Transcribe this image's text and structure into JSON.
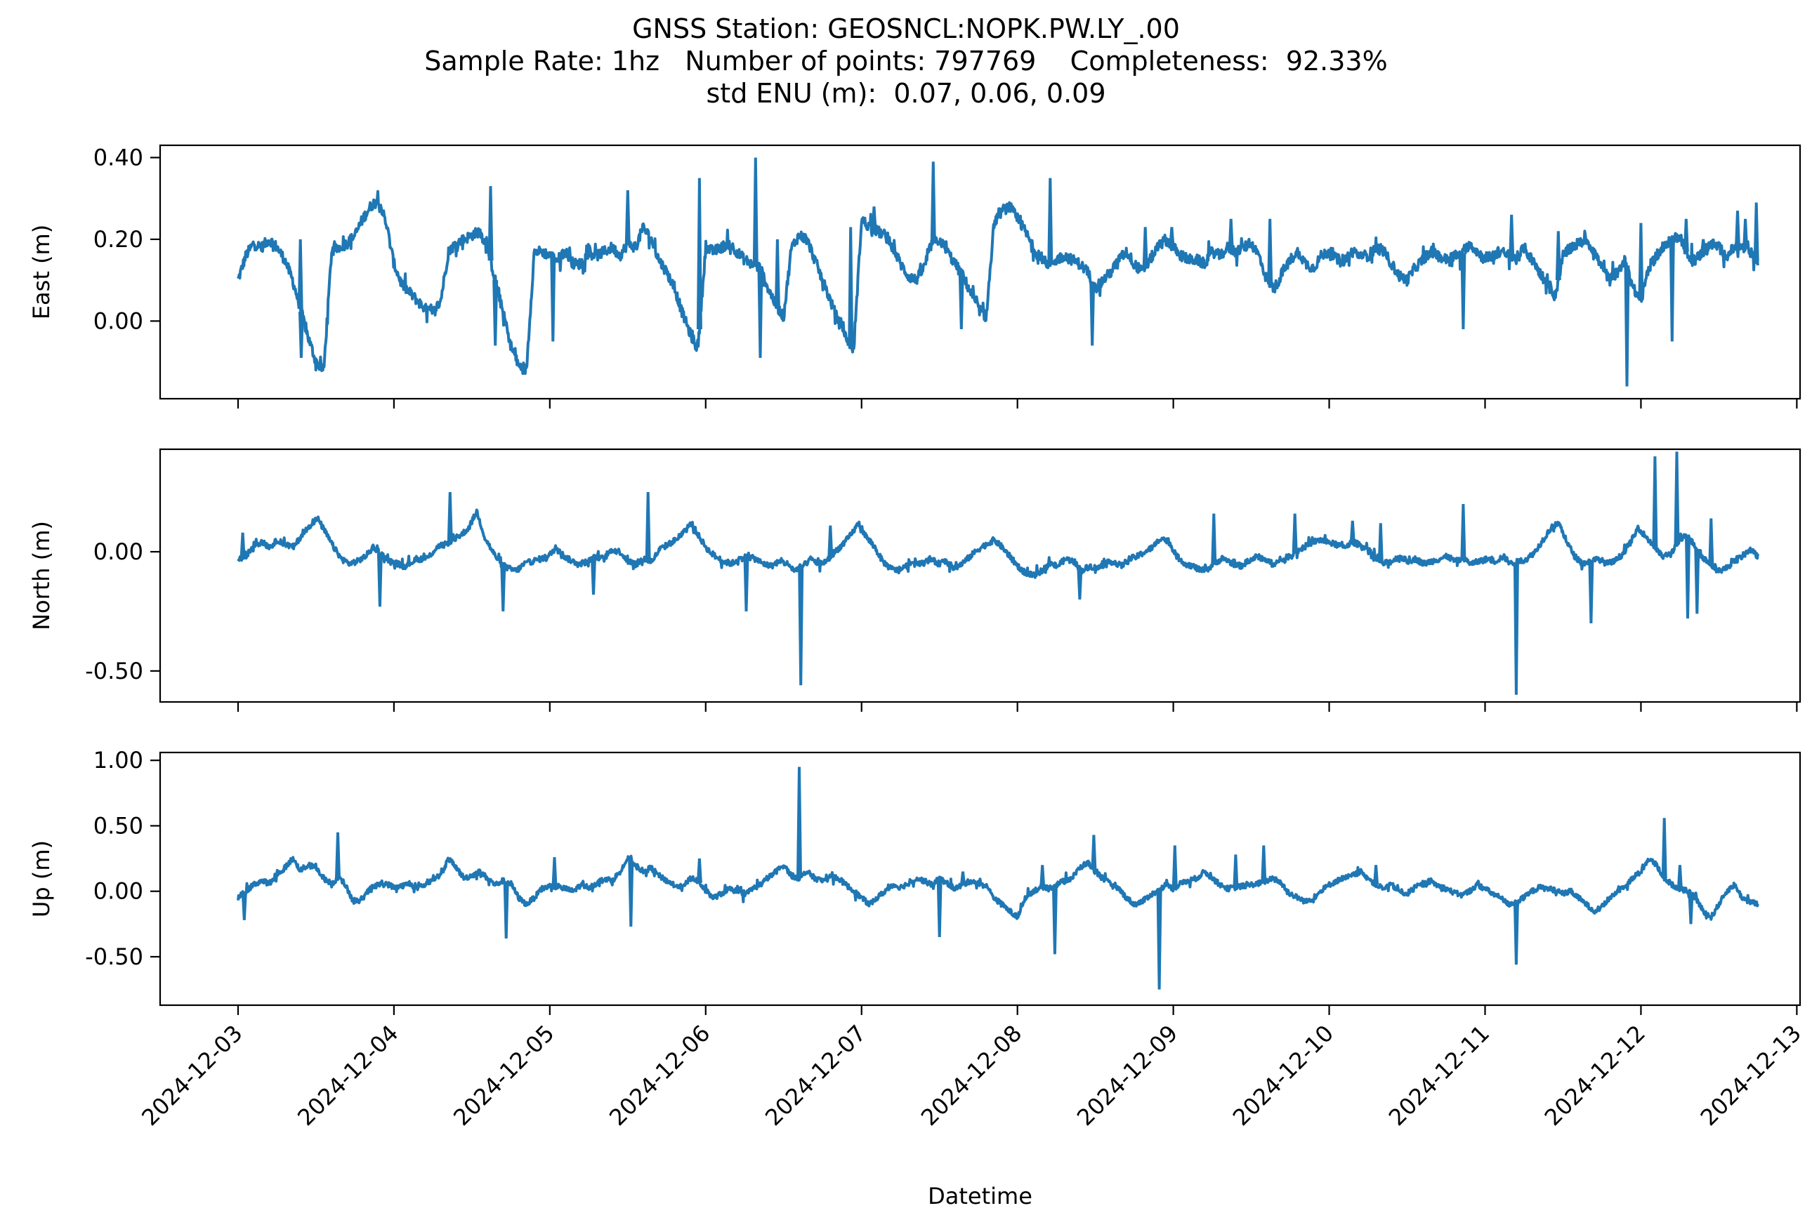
{
  "title": {
    "line1": "GNSS Station: GEOSNCL:NOPK.PW.LY_.00",
    "line2": "Sample Rate: 1hz   Number of points: 797769    Completeness:  92.33%",
    "line3": "std ENU (m):  0.07, 0.06, 0.09"
  },
  "colors": {
    "series": "#1f77b4",
    "axes": "#000000",
    "background": "#ffffff"
  },
  "chart_data": {
    "type": "line",
    "xlabel": "Datetime",
    "x_ticks": [
      "2024-12-03",
      "2024-12-04",
      "2024-12-05",
      "2024-12-06",
      "2024-12-07",
      "2024-12-08",
      "2024-12-09",
      "2024-12-10",
      "2024-12-11",
      "2024-12-12",
      "2024-12-13"
    ],
    "xlim": [
      "2024-12-02T12:00",
      "2024-12-13T00:30"
    ],
    "x_start": "2024-12-03T00:00",
    "x_end": "2024-12-12T18:00",
    "grid": false,
    "legend": "none",
    "panels": [
      {
        "name": "East",
        "ylabel": "East (m)",
        "ylim": [
          -0.19,
          0.43
        ],
        "yticks": [
          0.0,
          0.2,
          0.4
        ],
        "ytick_labels": [
          "0.00",
          "0.20",
          "0.40"
        ],
        "baseline": [
          0.1,
          0.16,
          0.19,
          0.18,
          0.2,
          0.18,
          0.15,
          0.1,
          0.03,
          -0.04,
          -0.1,
          -0.12,
          0.17,
          0.18,
          0.19,
          0.21,
          0.25,
          0.28,
          0.3,
          0.24,
          0.14,
          0.09,
          0.07,
          0.05,
          0.03,
          0.02,
          0.05,
          0.17,
          0.19,
          0.2,
          0.21,
          0.22,
          0.18,
          0.1,
          0.02,
          -0.06,
          -0.11,
          -0.12,
          0.17,
          0.17,
          0.16,
          0.15,
          0.17,
          0.14,
          0.14,
          0.17,
          0.16,
          0.17,
          0.18,
          0.16,
          0.19,
          0.18,
          0.23,
          0.2,
          0.15,
          0.12,
          0.08,
          0.02,
          -0.03,
          -0.07,
          0.18,
          0.17,
          0.18,
          0.19,
          0.17,
          0.15,
          0.14,
          0.13,
          0.08,
          0.04,
          0.01,
          0.18,
          0.21,
          0.2,
          0.15,
          0.1,
          0.05,
          0.0,
          -0.04,
          -0.07,
          0.25,
          0.23,
          0.22,
          0.21,
          0.18,
          0.14,
          0.11,
          0.1,
          0.13,
          0.19,
          0.2,
          0.17,
          0.14,
          0.11,
          0.07,
          0.03,
          0.01,
          0.24,
          0.27,
          0.28,
          0.25,
          0.22,
          0.18,
          0.15,
          0.14,
          0.15,
          0.16,
          0.15,
          0.14,
          0.12,
          0.08,
          0.1,
          0.12,
          0.15,
          0.17,
          0.14,
          0.12,
          0.15,
          0.18,
          0.2,
          0.18,
          0.16,
          0.15,
          0.15,
          0.14,
          0.17,
          0.16,
          0.18,
          0.17,
          0.18,
          0.19,
          0.16,
          0.1,
          0.08,
          0.12,
          0.15,
          0.17,
          0.14,
          0.13,
          0.16,
          0.17,
          0.15,
          0.15,
          0.17,
          0.16,
          0.16,
          0.18,
          0.17,
          0.14,
          0.11,
          0.1,
          0.13,
          0.15,
          0.17,
          0.16,
          0.15,
          0.16,
          0.16,
          0.19,
          0.17,
          0.15,
          0.16,
          0.17,
          0.16,
          0.15,
          0.18,
          0.15,
          0.12,
          0.09,
          0.06,
          0.16,
          0.18,
          0.19,
          0.2,
          0.17,
          0.13,
          0.1,
          0.12,
          0.15,
          0.08,
          0.05,
          0.13,
          0.16,
          0.18,
          0.2,
          0.21,
          0.16,
          0.15,
          0.17,
          0.19,
          0.18,
          0.16,
          0.18,
          0.18,
          0.17,
          0.14
        ],
        "spikes": [
          [
            0.4,
            0.2
          ],
          [
            0.405,
            -0.09
          ],
          [
            1.62,
            0.33
          ],
          [
            1.65,
            -0.06
          ],
          [
            2.02,
            -0.05
          ],
          [
            2.5,
            0.32
          ],
          [
            2.96,
            0.35
          ],
          [
            3.32,
            0.4
          ],
          [
            3.35,
            -0.09
          ],
          [
            3.46,
            0.2
          ],
          [
            3.93,
            0.23
          ],
          [
            4.08,
            0.28
          ],
          [
            4.46,
            0.39
          ],
          [
            4.64,
            -0.02
          ],
          [
            5.21,
            0.35
          ],
          [
            5.48,
            -0.06
          ],
          [
            5.82,
            0.23
          ],
          [
            5.99,
            0.23
          ],
          [
            6.37,
            0.25
          ],
          [
            6.62,
            0.25
          ],
          [
            7.31,
            0.17
          ],
          [
            7.86,
            -0.02
          ],
          [
            8.01,
            0.17
          ],
          [
            8.17,
            0.26
          ],
          [
            8.47,
            0.22
          ],
          [
            8.91,
            -0.16
          ],
          [
            9.0,
            0.24
          ],
          [
            9.2,
            -0.05
          ],
          [
            9.29,
            0.25
          ],
          [
            9.4,
            0.2
          ],
          [
            9.62,
            0.27
          ],
          [
            9.67,
            0.25
          ],
          [
            9.74,
            0.29
          ]
        ],
        "noise": 0.013
      },
      {
        "name": "North",
        "ylabel": "North (m)",
        "ylim": [
          -0.63,
          0.43
        ],
        "yticks": [
          0.0,
          -0.5
        ],
        "ytick_labels": [
          "0.00",
          "-0.50"
        ],
        "baseline": [
          -0.03,
          -0.02,
          0.03,
          0.04,
          0.02,
          0.05,
          0.03,
          0.02,
          0.07,
          0.11,
          0.14,
          0.08,
          0.02,
          -0.03,
          -0.05,
          -0.04,
          -0.02,
          0.02,
          -0.01,
          -0.04,
          -0.05,
          -0.06,
          -0.04,
          -0.03,
          -0.02,
          0.02,
          0.03,
          0.05,
          0.07,
          0.1,
          0.17,
          0.06,
          0.0,
          -0.05,
          -0.07,
          -0.08,
          -0.05,
          -0.04,
          -0.03,
          -0.02,
          0.02,
          -0.02,
          -0.04,
          -0.05,
          -0.04,
          -0.02,
          -0.03,
          0.01,
          0.0,
          -0.04,
          -0.05,
          -0.03,
          -0.04,
          0.01,
          0.03,
          0.05,
          0.08,
          0.12,
          0.06,
          0.01,
          -0.02,
          -0.04,
          -0.05,
          -0.03,
          -0.02,
          -0.03,
          -0.05,
          -0.06,
          -0.04,
          -0.05,
          -0.08,
          -0.06,
          -0.03,
          -0.05,
          -0.04,
          0.0,
          0.03,
          0.07,
          0.12,
          0.06,
          0.02,
          -0.04,
          -0.07,
          -0.08,
          -0.06,
          -0.04,
          -0.05,
          -0.03,
          -0.05,
          -0.04,
          -0.07,
          -0.05,
          -0.02,
          0.01,
          0.03,
          0.05,
          0.02,
          -0.02,
          -0.06,
          -0.09,
          -0.1,
          -0.08,
          -0.05,
          -0.06,
          -0.03,
          -0.04,
          -0.08,
          -0.06,
          -0.07,
          -0.05,
          -0.04,
          -0.06,
          -0.03,
          -0.02,
          0.0,
          0.02,
          0.06,
          0.04,
          -0.02,
          -0.05,
          -0.06,
          -0.08,
          -0.07,
          -0.04,
          -0.03,
          -0.05,
          -0.06,
          -0.04,
          -0.02,
          -0.03,
          -0.05,
          -0.04,
          -0.02,
          0.0,
          0.02,
          0.04,
          0.05,
          0.04,
          0.03,
          0.02,
          0.04,
          0.03,
          0.01,
          -0.03,
          -0.05,
          -0.04,
          -0.02,
          -0.04,
          -0.03,
          -0.05,
          -0.04,
          -0.03,
          -0.02,
          -0.04,
          -0.03,
          -0.05,
          -0.04,
          -0.03,
          -0.04,
          -0.02,
          -0.05,
          -0.04,
          -0.03,
          0.0,
          0.05,
          0.1,
          0.12,
          0.04,
          -0.02,
          -0.05,
          -0.04,
          -0.03,
          -0.05,
          -0.04,
          -0.01,
          0.04,
          0.1,
          0.06,
          0.02,
          -0.02,
          -0.01,
          0.04,
          0.07,
          0.03,
          -0.02,
          -0.05,
          -0.08,
          -0.07,
          -0.04,
          -0.02,
          0.01,
          -0.02
        ],
        "spikes": [
          [
            0.03,
            0.08
          ],
          [
            0.91,
            -0.23
          ],
          [
            1.36,
            0.25
          ],
          [
            1.7,
            -0.25
          ],
          [
            2.28,
            -0.18
          ],
          [
            2.63,
            0.25
          ],
          [
            3.26,
            -0.25
          ],
          [
            3.61,
            -0.56
          ],
          [
            3.8,
            0.11
          ],
          [
            5.4,
            -0.2
          ],
          [
            6.26,
            0.16
          ],
          [
            6.78,
            0.16
          ],
          [
            7.15,
            0.13
          ],
          [
            7.33,
            0.12
          ],
          [
            7.86,
            0.2
          ],
          [
            8.2,
            -0.6
          ],
          [
            8.68,
            -0.3
          ],
          [
            9.09,
            0.4
          ],
          [
            9.23,
            0.42
          ],
          [
            9.3,
            -0.28
          ],
          [
            9.36,
            -0.26
          ],
          [
            9.45,
            0.14
          ]
        ],
        "noise": 0.012
      },
      {
        "name": "Up",
        "ylabel": "Up (m)",
        "ylim": [
          -0.87,
          1.06
        ],
        "yticks": [
          1.0,
          0.5,
          0.0,
          -0.5
        ],
        "ytick_labels": [
          "1.00",
          "0.50",
          "0.00",
          "-0.50"
        ],
        "baseline": [
          -0.05,
          0.0,
          0.05,
          0.08,
          0.06,
          0.12,
          0.18,
          0.25,
          0.16,
          0.2,
          0.18,
          0.1,
          0.05,
          0.12,
          0.02,
          -0.1,
          -0.05,
          0.02,
          0.05,
          0.06,
          0.03,
          0.04,
          0.06,
          0.02,
          0.05,
          0.1,
          0.12,
          0.25,
          0.18,
          0.1,
          0.12,
          0.15,
          0.1,
          0.05,
          0.08,
          0.06,
          -0.05,
          -0.1,
          -0.05,
          0.02,
          0.04,
          0.03,
          0.02,
          0.0,
          0.05,
          0.03,
          0.06,
          0.1,
          0.08,
          0.15,
          0.25,
          0.2,
          0.15,
          0.18,
          0.12,
          0.08,
          0.05,
          0.02,
          0.1,
          0.08,
          0.0,
          -0.05,
          -0.02,
          0.02,
          0.0,
          -0.03,
          0.02,
          0.05,
          0.1,
          0.15,
          0.2,
          0.12,
          0.1,
          0.15,
          0.1,
          0.08,
          0.12,
          0.1,
          0.05,
          0.0,
          -0.05,
          -0.1,
          -0.05,
          0.0,
          0.05,
          0.03,
          0.06,
          0.1,
          0.08,
          0.05,
          0.1,
          0.06,
          0.02,
          0.05,
          0.08,
          0.06,
          0.04,
          -0.05,
          -0.1,
          -0.15,
          -0.2,
          -0.05,
          0.0,
          0.03,
          0.02,
          0.05,
          0.08,
          0.1,
          0.18,
          0.22,
          0.15,
          0.1,
          0.05,
          0.02,
          -0.05,
          -0.1,
          -0.08,
          -0.03,
          0.0,
          0.05,
          0.02,
          0.06,
          0.08,
          0.1,
          0.15,
          0.1,
          0.05,
          0.02,
          0.03,
          0.04,
          0.05,
          0.06,
          0.08,
          0.1,
          0.05,
          -0.02,
          -0.05,
          -0.08,
          -0.05,
          0.0,
          0.05,
          0.08,
          0.1,
          0.12,
          0.15,
          0.1,
          0.05,
          0.02,
          0.05,
          0.0,
          -0.02,
          0.03,
          0.05,
          0.08,
          0.04,
          0.02,
          -0.01,
          -0.03,
          0.0,
          0.05,
          0.02,
          -0.02,
          -0.05,
          -0.1,
          -0.08,
          -0.05,
          0.0,
          0.03,
          0.02,
          0.01,
          -0.02,
          0.0,
          -0.05,
          -0.1,
          -0.15,
          -0.12,
          -0.05,
          0.0,
          0.05,
          0.1,
          0.15,
          0.25,
          0.2,
          0.1,
          0.05,
          0.02,
          0.0,
          -0.05,
          -0.15,
          -0.2,
          -0.1,
          0.0,
          0.05,
          -0.05,
          -0.08,
          -0.1
        ],
        "spikes": [
          [
            0.04,
            -0.22
          ],
          [
            0.64,
            0.45
          ],
          [
            1.72,
            -0.36
          ],
          [
            2.03,
            0.26
          ],
          [
            2.52,
            -0.27
          ],
          [
            2.96,
            0.25
          ],
          [
            3.6,
            0.95
          ],
          [
            4.5,
            -0.35
          ],
          [
            4.65,
            0.15
          ],
          [
            5.16,
            0.2
          ],
          [
            5.24,
            -0.48
          ],
          [
            5.49,
            0.43
          ],
          [
            5.91,
            -0.75
          ],
          [
            6.01,
            0.35
          ],
          [
            6.4,
            0.28
          ],
          [
            6.58,
            0.35
          ],
          [
            7.3,
            0.2
          ],
          [
            8.2,
            -0.56
          ],
          [
            9.15,
            0.56
          ],
          [
            9.25,
            0.2
          ],
          [
            9.32,
            -0.25
          ]
        ],
        "noise": 0.02
      }
    ]
  }
}
